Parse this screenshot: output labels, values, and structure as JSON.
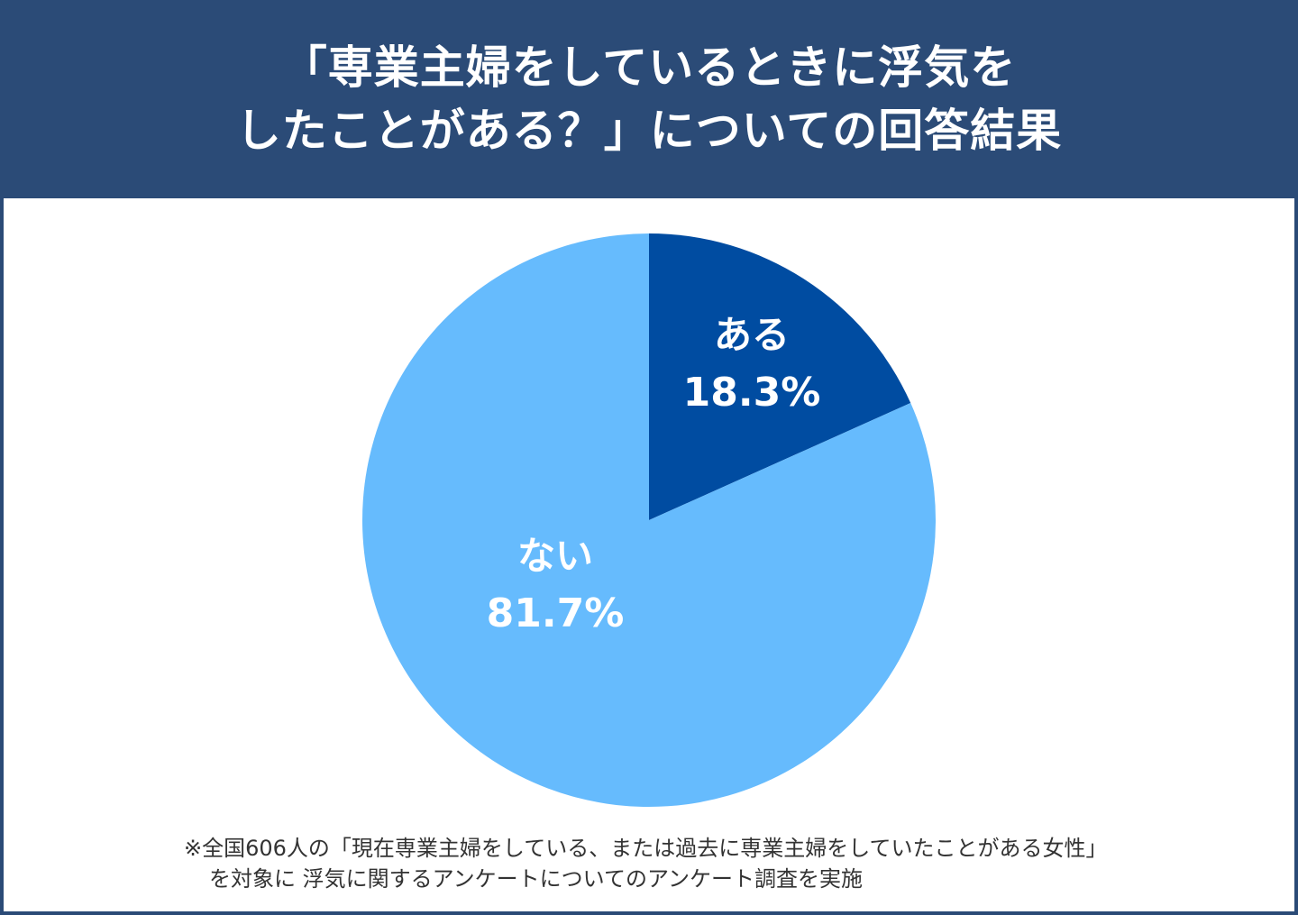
{
  "header": {
    "title_line1": "「専業主婦をしているときに浮気を",
    "title_line2": "したことがある？」についての回答結果",
    "background_color": "#2b4b77"
  },
  "chart_data": {
    "type": "pie",
    "title": "「専業主婦をしているときに浮気をしたことがある？」についての回答結果",
    "categories": [
      "ある",
      "ない"
    ],
    "values": [
      18.3,
      81.7
    ],
    "unit": "%",
    "colors": [
      "#004ca1",
      "#66bbfd"
    ],
    "start_angle_deg": 0,
    "direction": "clockwise",
    "labels": [
      {
        "name": "ある",
        "value_text": "18.3%"
      },
      {
        "name": "ない",
        "value_text": "81.7%"
      }
    ],
    "legend": null
  },
  "footnote": {
    "line1": "※全国606人の「現在専業主婦をしている、または過去に専業主婦をしていたことがある女性」",
    "line2": "を対象に 浮気に関するアンケートについてのアンケート調査を実施"
  }
}
